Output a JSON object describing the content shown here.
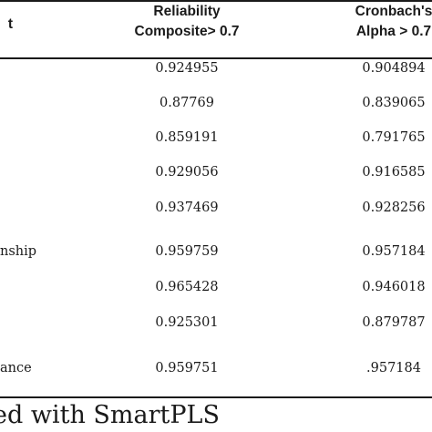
{
  "table": {
    "headers": {
      "construct": "t",
      "composite_reliability": [
        "Reliability",
        "Composite> 0.7"
      ],
      "cronbachs_alpha": [
        "Cronbach's",
        "Alpha > 0.7"
      ]
    },
    "rows": [
      {
        "name": "",
        "cr": "0.924955",
        "ca": "0.904894"
      },
      {
        "name": "",
        "cr": "0.87769",
        "ca": "0.839065"
      },
      {
        "name": "",
        "cr": "0.859191",
        "ca": "0.791765"
      },
      {
        "name": "",
        "cr": "0.929056",
        "ca": "0.916585"
      },
      {
        "name": "",
        "cr": "0.937469",
        "ca": "0.928256"
      },
      {
        "name": "nship",
        "cr": "0.959759",
        "ca": "0.957184"
      },
      {
        "name": "",
        "cr": "0.965428",
        "ca": "0.946018"
      },
      {
        "name": "",
        "cr": "0.925301",
        "ca": "0.879787"
      },
      {
        "name": "ance",
        "cr": "0.959751",
        "ca": ".957184"
      }
    ]
  },
  "footer": {
    "caption": "ed with SmartPLS"
  }
}
